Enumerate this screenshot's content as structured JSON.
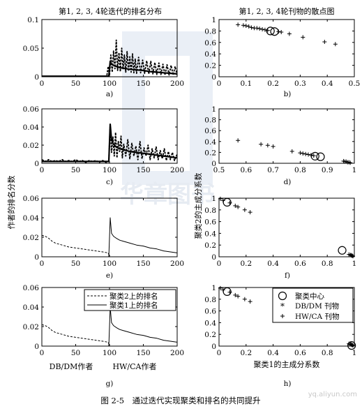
{
  "figure": {
    "caption": "图 2-5　通过迭代实现聚类和排名的共同提升",
    "watermark": "yq.aliyun.com",
    "publisher_watermark": "华章图书",
    "left_column_title": "第1, 2, 3, 4轮迭代的排名分布",
    "right_column_title": "第1, 2, 3, 4轮刊物的散点图",
    "left_ylabel": "作者的排名分数",
    "right_ylabel": "聚类2的主成分系数",
    "right_xlabel": "聚类1的主成分系数",
    "left_xlabel_a": "DB/DM作者",
    "left_xlabel_b": "HW/CA作者"
  },
  "chart_data": [
    {
      "id": "a",
      "type": "line",
      "sublabel": "a)",
      "xlim": [
        0,
        200
      ],
      "ylim": [
        0,
        0.1
      ],
      "xticks": [
        "0",
        "50",
        "100",
        "150",
        "200"
      ],
      "yticks": [
        "0",
        "0.05",
        "0.1"
      ],
      "series": [
        {
          "style": "dashed-thick",
          "x": [
            0,
            80,
            90,
            96,
            98,
            100,
            102,
            104,
            106,
            108,
            110,
            112,
            114,
            116,
            118,
            120,
            122,
            124,
            126,
            128,
            130,
            132,
            134,
            136,
            138,
            140,
            143,
            146,
            149,
            152,
            155,
            158,
            161,
            164,
            167,
            170,
            173,
            176,
            179,
            182,
            185,
            188,
            191,
            194,
            197,
            200
          ],
          "y": [
            0,
            0,
            0,
            0.001,
            0.018,
            0.002,
            0.038,
            0.008,
            0.045,
            0.014,
            0.064,
            0.011,
            0.042,
            0.009,
            0.05,
            0.013,
            0.038,
            0.008,
            0.044,
            0.01,
            0.035,
            0.008,
            0.04,
            0.007,
            0.031,
            0.006,
            0.034,
            0.007,
            0.029,
            0.006,
            0.028,
            0.005,
            0.027,
            0.005,
            0.025,
            0.004,
            0.024,
            0.004,
            0.022,
            0.003,
            0.021,
            0.003,
            0.02,
            0.003,
            0.018,
            0.003
          ]
        },
        {
          "style": "solid",
          "x": [
            0,
            99,
            101,
            103,
            106,
            110,
            115,
            120,
            130,
            140,
            150,
            160,
            170,
            180,
            190,
            200
          ],
          "y": [
            0.001,
            0.001,
            0.027,
            0.022,
            0.02,
            0.018,
            0.016,
            0.015,
            0.013,
            0.012,
            0.011,
            0.009,
            0.008,
            0.007,
            0.006,
            0.005
          ]
        }
      ]
    },
    {
      "id": "b",
      "type": "scatter",
      "sublabel": "b)",
      "xlim": [
        0,
        0.5
      ],
      "ylim": [
        0,
        1
      ],
      "xticks": [
        "0",
        "0.1",
        "0.2",
        "0.3",
        "0.4",
        "0.5"
      ],
      "yticks": [
        "0",
        "0.2",
        "0.4",
        "0.6",
        "0.8",
        "1"
      ],
      "plus_points": {
        "x": [
          0.07,
          0.09,
          0.1,
          0.11,
          0.12,
          0.13,
          0.14,
          0.15,
          0.16,
          0.17,
          0.18,
          0.22,
          0.23,
          0.26,
          0.31,
          0.39,
          0.43
        ],
        "y": [
          0.91,
          0.9,
          0.89,
          0.88,
          0.86,
          0.85,
          0.85,
          0.84,
          0.83,
          0.82,
          0.81,
          0.79,
          0.78,
          0.75,
          0.69,
          0.61,
          0.57
        ]
      },
      "circles": {
        "x": [
          0.19,
          0.205
        ],
        "y": [
          0.8,
          0.79
        ]
      }
    },
    {
      "id": "c",
      "type": "line",
      "sublabel": "c)",
      "xlim": [
        0,
        200
      ],
      "ylim": [
        0,
        0.06
      ],
      "xticks": [
        "0",
        "50",
        "100",
        "150",
        "200"
      ],
      "yticks": [
        "0",
        "0.02",
        "0.04",
        "0.06"
      ],
      "series": [
        {
          "style": "dashed-thick",
          "x": [
            0,
            5,
            10,
            15,
            20,
            25,
            30,
            35,
            40,
            45,
            50,
            55,
            60,
            65,
            70,
            75,
            80,
            85,
            90,
            95,
            99,
            101,
            103,
            105,
            107,
            109,
            111,
            113,
            115,
            117,
            119,
            121,
            124,
            127,
            130,
            133,
            136,
            139,
            142,
            145,
            148,
            151,
            154,
            157,
            160,
            163,
            166,
            169,
            172,
            175,
            178,
            181,
            184,
            187,
            190,
            193,
            196,
            200
          ],
          "y": [
            0.004,
            0.002,
            0.004,
            0.002,
            0.003,
            0.002,
            0.004,
            0.002,
            0.003,
            0.002,
            0.004,
            0.002,
            0.003,
            0.001,
            0.003,
            0.002,
            0.003,
            0.001,
            0.003,
            0.001,
            0.002,
            0.043,
            0.012,
            0.029,
            0.008,
            0.034,
            0.006,
            0.024,
            0.013,
            0.03,
            0.006,
            0.021,
            0.008,
            0.026,
            0.005,
            0.022,
            0.008,
            0.019,
            0.004,
            0.024,
            0.005,
            0.017,
            0.008,
            0.02,
            0.004,
            0.016,
            0.006,
            0.018,
            0.004,
            0.014,
            0.005,
            0.016,
            0.003,
            0.013,
            0.004,
            0.012,
            0.003,
            0.01
          ]
        },
        {
          "style": "solid",
          "x": [
            0,
            99,
            101,
            103,
            106,
            110,
            115,
            120,
            130,
            140,
            150,
            160,
            170,
            180,
            190,
            200
          ],
          "y": [
            0.002,
            0.002,
            0.043,
            0.026,
            0.021,
            0.018,
            0.016,
            0.015,
            0.013,
            0.012,
            0.011,
            0.01,
            0.009,
            0.008,
            0.007,
            0.006
          ]
        }
      ]
    },
    {
      "id": "d",
      "type": "scatter",
      "sublabel": "d)",
      "xlim": [
        0.5,
        1
      ],
      "ylim": [
        0,
        1
      ],
      "xticks": [
        "0.5",
        "0.6",
        "0.7",
        "0.8",
        "0.9",
        "1"
      ],
      "yticks": [
        "0",
        "0.2",
        "0.4",
        "0.6",
        "0.8",
        "1"
      ],
      "plus_points": {
        "x": [
          0.57,
          0.655,
          0.68,
          0.7,
          0.77,
          0.8,
          0.81,
          0.82,
          0.83,
          0.84,
          0.85,
          0.96,
          0.965,
          0.97,
          0.975,
          0.98,
          0.985
        ],
        "y": [
          0.42,
          0.35,
          0.33,
          0.31,
          0.22,
          0.19,
          0.18,
          0.17,
          0.16,
          0.15,
          0.14,
          0.04,
          0.03,
          0.03,
          0.02,
          0.02,
          0.01
        ]
      },
      "circles": {
        "x": [
          0.855,
          0.875
        ],
        "y": [
          0.13,
          0.12
        ]
      }
    },
    {
      "id": "e",
      "type": "line",
      "sublabel": "e)",
      "xlim": [
        0,
        200
      ],
      "ylim": [
        0,
        0.06
      ],
      "xticks": [
        "0",
        "50",
        "100",
        "150",
        "200"
      ],
      "yticks": [
        "0",
        "0.02",
        "0.04",
        "0.06"
      ],
      "series": [
        {
          "style": "dashed",
          "x": [
            0,
            5,
            10,
            15,
            20,
            30,
            40,
            50,
            60,
            70,
            80,
            90,
            98,
            100
          ],
          "y": [
            0.022,
            0.021,
            0.019,
            0.016,
            0.014,
            0.012,
            0.01,
            0.009,
            0.008,
            0.007,
            0.006,
            0.005,
            0.004,
            0.0
          ]
        },
        {
          "style": "solid",
          "x": [
            0,
            5,
            10,
            15,
            20,
            25,
            30,
            35,
            40,
            45,
            50,
            55,
            60,
            65,
            70,
            75,
            80,
            85,
            90,
            95,
            99,
            101,
            103,
            106,
            110,
            115,
            120,
            130,
            140,
            150,
            160,
            170,
            180,
            190,
            200
          ],
          "y": [
            0,
            0,
            0,
            0,
            0,
            0,
            0,
            0,
            0,
            0,
            0,
            0,
            0,
            0,
            0,
            0,
            0,
            0,
            0,
            0,
            0.0,
            0.04,
            0.024,
            0.021,
            0.019,
            0.017,
            0.016,
            0.014,
            0.012,
            0.011,
            0.009,
            0.008,
            0.006,
            0.005,
            0.004
          ]
        }
      ]
    },
    {
      "id": "f",
      "type": "scatter",
      "sublabel": "f)",
      "xlim": [
        0,
        1
      ],
      "ylim": [
        0,
        1
      ],
      "xticks": [
        "0",
        "0.2",
        "0.4",
        "0.6",
        "0.8",
        "1"
      ],
      "yticks": [
        "0",
        "0.2",
        "0.4",
        "0.6",
        "0.8",
        "1"
      ],
      "plus_points": {
        "x": [
          0.01,
          0.03,
          0.08,
          0.12,
          0.14,
          0.19,
          0.23,
          0.96,
          0.97,
          0.975,
          0.98,
          0.985,
          0.99
        ],
        "y": [
          0.99,
          0.96,
          0.92,
          0.87,
          0.85,
          0.8,
          0.76,
          0.04,
          0.03,
          0.03,
          0.02,
          0.02,
          0.01
        ]
      },
      "circles": {
        "x": [
          0.06,
          0.91
        ],
        "y": [
          0.93,
          0.11
        ]
      }
    },
    {
      "id": "g",
      "type": "line",
      "sublabel": "g)",
      "xlim": [
        0,
        200
      ],
      "ylim": [
        0,
        0.06
      ],
      "xticks": [
        "0",
        "50",
        "100",
        "150",
        "200"
      ],
      "yticks": [
        "0",
        "0.02",
        "0.04",
        "0.06"
      ],
      "legend": [
        "聚类2上的排名",
        "聚类1上的排名"
      ],
      "series": [
        {
          "style": "dashed",
          "name": "聚类2上的排名",
          "x": [
            0,
            5,
            10,
            15,
            20,
            30,
            40,
            50,
            60,
            70,
            80,
            90,
            98,
            100
          ],
          "y": [
            0.022,
            0.021,
            0.019,
            0.016,
            0.014,
            0.012,
            0.01,
            0.009,
            0.008,
            0.007,
            0.006,
            0.005,
            0.004,
            0.0
          ]
        },
        {
          "style": "solid",
          "name": "聚类1上的排名",
          "x": [
            0,
            5,
            10,
            15,
            20,
            25,
            30,
            35,
            40,
            45,
            50,
            55,
            60,
            65,
            70,
            75,
            80,
            85,
            90,
            95,
            99,
            101,
            103,
            106,
            110,
            115,
            120,
            130,
            140,
            150,
            160,
            170,
            180,
            190,
            200
          ],
          "y": [
            0,
            0,
            0,
            0,
            0,
            0,
            0,
            0,
            0,
            0,
            0,
            0,
            0,
            0,
            0,
            0,
            0,
            0,
            0,
            0,
            0.0,
            0.04,
            0.024,
            0.021,
            0.019,
            0.017,
            0.016,
            0.014,
            0.012,
            0.011,
            0.009,
            0.008,
            0.006,
            0.005,
            0.004
          ]
        }
      ]
    },
    {
      "id": "h",
      "type": "scatter",
      "sublabel": "h)",
      "xlim": [
        0,
        1
      ],
      "ylim": [
        0,
        1
      ],
      "xticks": [
        "0",
        "0.2",
        "0.4",
        "0.6",
        "0.8",
        "1"
      ],
      "yticks": [
        "0",
        "0.2",
        "0.4",
        "0.6",
        "0.8",
        "1"
      ],
      "legend": [
        "聚类中心",
        "DB/DM 刊物",
        "HW/CA 刊物"
      ],
      "plus_points": {
        "x": [
          0.01,
          0.03,
          0.08,
          0.12,
          0.14,
          0.19,
          0.23,
          0.96,
          0.97,
          0.975,
          0.98,
          0.985,
          0.99
        ],
        "y": [
          0.99,
          0.96,
          0.92,
          0.87,
          0.85,
          0.8,
          0.76,
          0.04,
          0.03,
          0.03,
          0.02,
          0.02,
          0.01
        ]
      },
      "circles": {
        "x": [
          0.06,
          0.98
        ],
        "y": [
          0.93,
          0.01
        ]
      }
    }
  ]
}
